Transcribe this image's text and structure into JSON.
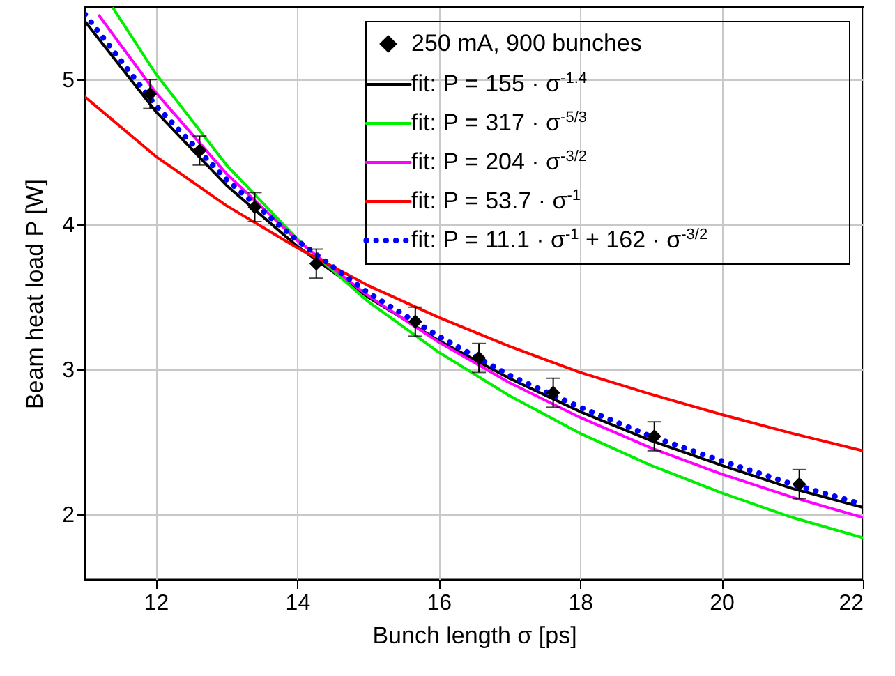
{
  "chart_data": {
    "type": "line",
    "xlabel": "Bunch length σ [ps]",
    "ylabel": "Beam heat load P [W]",
    "xlim": [
      11,
      22
    ],
    "xticks": [
      12,
      14,
      16,
      18,
      20,
      22
    ],
    "ylim": [
      1.55,
      5.5
    ],
    "yticks": [
      2,
      3,
      4,
      5
    ],
    "grid": true,
    "legend": "top right",
    "series": [
      {
        "name": "250 mA, 900 bunches",
        "type": "scatter",
        "marker": "diamond",
        "color": "#000000",
        "x": [
          11.92,
          12.62,
          13.4,
          14.27,
          15.67,
          16.57,
          17.62,
          19.05,
          21.1
        ],
        "values": [
          4.9,
          4.51,
          4.12,
          3.73,
          3.33,
          3.08,
          2.84,
          2.54,
          2.21
        ],
        "errors": [
          0.1,
          0.1,
          0.1,
          0.1,
          0.1,
          0.1,
          0.1,
          0.1,
          0.1
        ]
      },
      {
        "name": "fit: P = 155 · σ$^{-1.4}$",
        "type": "line",
        "line_style": "solid",
        "color": "#000000",
        "x": [
          11,
          12,
          13,
          14,
          15,
          16,
          17,
          18,
          19,
          20,
          21,
          22
        ],
        "values": [
          5.4,
          4.78,
          4.27,
          3.85,
          3.5,
          3.2,
          2.94,
          2.71,
          2.51,
          2.34,
          2.18,
          2.05
        ]
      },
      {
        "name": "fit: P = 317 · σ$^{-5/3}$",
        "type": "line",
        "line_style": "solid",
        "color": "#00ee00",
        "x": [
          11.4,
          12,
          13,
          14,
          15,
          16,
          17,
          18,
          19,
          20,
          21,
          22
        ],
        "values": [
          5.49,
          5.04,
          4.41,
          3.9,
          3.47,
          3.12,
          2.82,
          2.56,
          2.34,
          2.15,
          1.98,
          1.84
        ]
      },
      {
        "name": "fit: P = 204 · σ$^{-3/2}$",
        "type": "line",
        "line_style": "solid",
        "color": "#ff00ff",
        "x": [
          11.2,
          12,
          13,
          14,
          15,
          16,
          17,
          18,
          19,
          20,
          21,
          22
        ],
        "values": [
          5.44,
          4.91,
          4.35,
          3.89,
          3.51,
          3.19,
          2.91,
          2.67,
          2.46,
          2.28,
          2.12,
          1.98
        ]
      },
      {
        "name": "fit: P = 53.7 · σ$^{-1}$",
        "type": "line",
        "line_style": "solid",
        "color": "#ff0000",
        "x": [
          11,
          12,
          13,
          14,
          15,
          16,
          17,
          18,
          19,
          20,
          21,
          22
        ],
        "values": [
          4.88,
          4.47,
          4.13,
          3.84,
          3.58,
          3.36,
          3.16,
          2.98,
          2.83,
          2.69,
          2.56,
          2.44
        ]
      },
      {
        "name": "fit: P = 11.1 · σ$^{-1}$ + 162 · σ$^{-3/2}$",
        "type": "line",
        "line_style": "dotted",
        "color": "#0000ff",
        "x": [
          11,
          12,
          13,
          14,
          15,
          16,
          17,
          18,
          19,
          20,
          21,
          22
        ],
        "values": [
          5.45,
          4.82,
          4.31,
          3.89,
          3.53,
          3.23,
          2.96,
          2.74,
          2.54,
          2.37,
          2.21,
          2.07
        ]
      }
    ]
  }
}
